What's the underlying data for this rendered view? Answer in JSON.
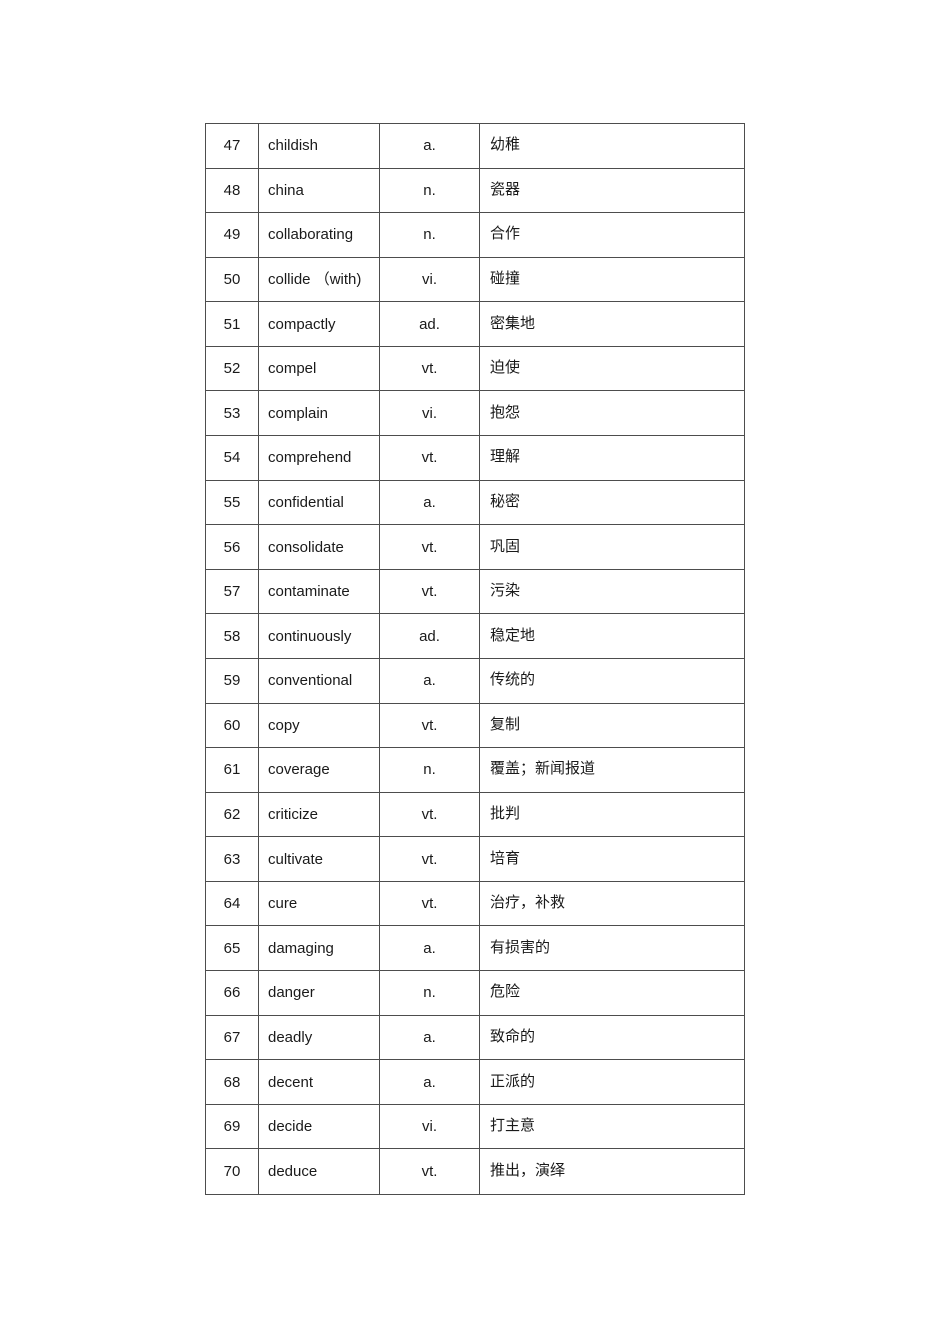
{
  "table": {
    "rows": [
      {
        "no": "47",
        "word": "childish",
        "pos": "a.",
        "meaning": "幼稚"
      },
      {
        "no": "48",
        "word": "china",
        "pos": "n.",
        "meaning": "瓷器"
      },
      {
        "no": "49",
        "word": "collaborating",
        "pos": "n.",
        "meaning": "合作"
      },
      {
        "no": "50",
        "word": "collide （with)",
        "pos": "vi.",
        "meaning": "碰撞"
      },
      {
        "no": "51",
        "word": "compactly",
        "pos": "ad.",
        "meaning": "密集地"
      },
      {
        "no": "52",
        "word": "compel",
        "pos": "vt.",
        "meaning": "迫使"
      },
      {
        "no": "53",
        "word": "complain",
        "pos": "vi.",
        "meaning": "抱怨"
      },
      {
        "no": "54",
        "word": "comprehend",
        "pos": "vt.",
        "meaning": "理解"
      },
      {
        "no": "55",
        "word": "confidential",
        "pos": "a.",
        "meaning": "秘密"
      },
      {
        "no": "56",
        "word": "consolidate",
        "pos": "vt.",
        "meaning": "巩固"
      },
      {
        "no": "57",
        "word": "contaminate",
        "pos": "vt.",
        "meaning": "污染"
      },
      {
        "no": "58",
        "word": "continuously",
        "pos": "ad.",
        "meaning": "稳定地"
      },
      {
        "no": "59",
        "word": "conventional",
        "pos": "a.",
        "meaning": "传统的"
      },
      {
        "no": "60",
        "word": "copy",
        "pos": "vt.",
        "meaning": "复制"
      },
      {
        "no": "61",
        "word": "coverage",
        "pos": "n.",
        "meaning": "覆盖；新闻报道"
      },
      {
        "no": "62",
        "word": "criticize",
        "pos": "vt.",
        "meaning": "批判"
      },
      {
        "no": "63",
        "word": "cultivate",
        "pos": "vt.",
        "meaning": "培育"
      },
      {
        "no": "64",
        "word": "cure",
        "pos": "vt.",
        "meaning": "治疗，补救"
      },
      {
        "no": "65",
        "word": "damaging",
        "pos": "a.",
        "meaning": "有损害的"
      },
      {
        "no": "66",
        "word": "danger",
        "pos": "n.",
        "meaning": "危险"
      },
      {
        "no": "67",
        "word": "deadly",
        "pos": "a.",
        "meaning": "致命的"
      },
      {
        "no": "68",
        "word": "decent",
        "pos": "a.",
        "meaning": "正派的"
      },
      {
        "no": "69",
        "word": "decide",
        "pos": "vi.",
        "meaning": "打主意"
      },
      {
        "no": "70",
        "word": "deduce",
        "pos": "vt.",
        "meaning": "推出，演绎"
      }
    ]
  }
}
